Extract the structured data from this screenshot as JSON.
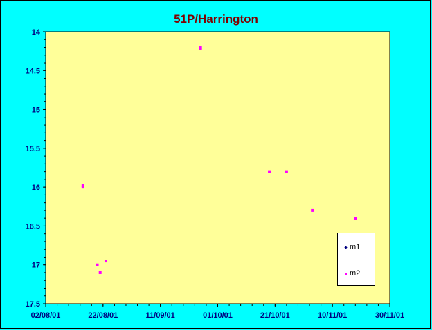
{
  "chart_data": {
    "type": "scatter",
    "title": "51P/Harrington",
    "xlabel": "",
    "ylabel": "",
    "x_ticks": [
      "02/08/01",
      "22/08/01",
      "11/09/01",
      "01/10/01",
      "21/10/01",
      "10/11/01",
      "30/11/01"
    ],
    "xlim": [
      "2001-08-02",
      "2001-11-30"
    ],
    "y_ticks": [
      "14",
      "14.5",
      "15",
      "15.5",
      "16",
      "16.5",
      "17",
      "17.5"
    ],
    "ylim": [
      14,
      17.5
    ],
    "y_reversed": true,
    "grid": false,
    "legend_position": "bottom-right",
    "background_color": "#FFFF99",
    "page_color": "#00FFFF",
    "series": [
      {
        "name": "m1",
        "color": "#000080",
        "marker": "diamond",
        "points": []
      },
      {
        "name": "m2",
        "color": "#FF00FF",
        "marker": "square",
        "points": [
          {
            "x": "2001-08-15",
            "y": 15.98
          },
          {
            "x": "2001-08-15",
            "y": 16.0
          },
          {
            "x": "2001-08-20",
            "y": 17.0
          },
          {
            "x": "2001-08-21",
            "y": 17.1
          },
          {
            "x": "2001-08-23",
            "y": 16.95
          },
          {
            "x": "2001-09-25",
            "y": 14.2
          },
          {
            "x": "2001-09-25",
            "y": 14.22
          },
          {
            "x": "2001-10-19",
            "y": 15.8
          },
          {
            "x": "2001-10-25",
            "y": 15.8
          },
          {
            "x": "2001-11-03",
            "y": 16.3
          },
          {
            "x": "2001-11-18",
            "y": 16.4
          }
        ]
      }
    ]
  }
}
